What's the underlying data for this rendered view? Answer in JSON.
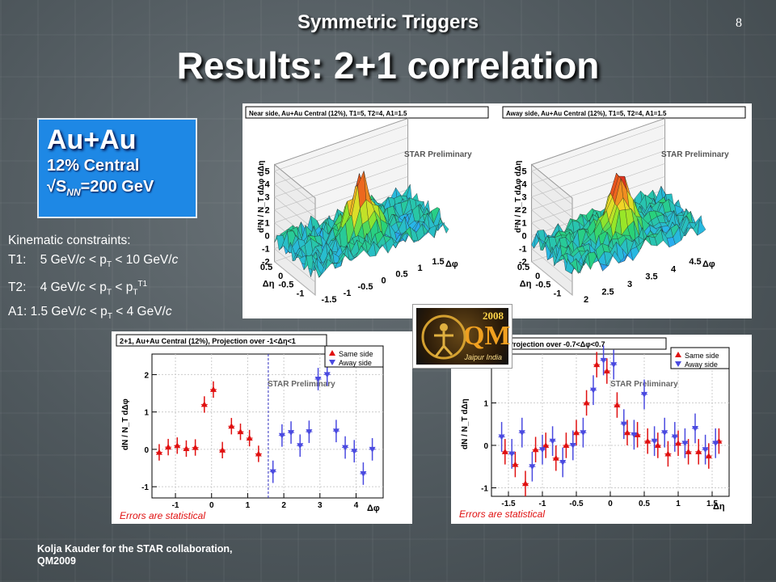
{
  "slide": {
    "subtitle": "Symmetric Triggers",
    "title": "Results: 2+1 correlation",
    "page_number": "8",
    "box": {
      "title": "Au+Au",
      "line1": "12% Central",
      "line2_pre": "√S",
      "line2_sub": "NN",
      "line2_post": "=200 GeV"
    },
    "kinematics": {
      "header": "Kinematic constraints:",
      "t1": {
        "label": "T1:",
        "pre": "5 GeV/",
        "unit_it": "c",
        "mid": " < p",
        "sub": "T",
        "post": " < 10 GeV/",
        "post_it": "c"
      },
      "t2": {
        "label": "T2:",
        "pre": "4 GeV/",
        "unit_it": "c",
        "mid": " < p",
        "sub": "T",
        "post": " < p",
        "sub2": "T",
        "sup2": "T1"
      },
      "a1": {
        "label": "A1:",
        "pre": "1.5 GeV/",
        "unit_it": "c",
        "mid": " < p",
        "sub": "T",
        "post": " < 4 GeV/",
        "post_it": "c"
      }
    },
    "footer_line1": "Kolja Kauder for the STAR collaboration,",
    "footer_line2": "QM2009",
    "logo": {
      "year": "2008",
      "mark": "QM",
      "city": "Jaipur India"
    },
    "accent_colors": {
      "same_side": "#e01010",
      "away_side": "#4a4ae0",
      "box_blue": "#1e88e5"
    }
  },
  "chart_data": [
    {
      "type": "surface3d",
      "title": "Near side, Au+Au Central (12%), T1=5, T2=4, A1=1.5",
      "watermark": "STAR Preliminary",
      "zlabel": "d²N / N_T dΔφ dΔη",
      "z_ticks": [
        "-2",
        "-1",
        "0",
        "1",
        "2",
        "3",
        "4",
        "5"
      ],
      "eta_ticks": [
        "-1",
        "-0.5",
        "0",
        "0.5"
      ],
      "phi_ticks": [
        "-1.5",
        "-1",
        "-0.5",
        "0",
        "0.5",
        "1",
        "1.5"
      ],
      "eta_label": "Δη",
      "phi_label": "Δφ",
      "peak_value": 4.5
    },
    {
      "type": "surface3d",
      "title": "Away side, Au+Au Central (12%), T1=5, T2=4, A1=1.5",
      "watermark": "STAR Preliminary",
      "zlabel": "d²N / N_T dΔφ dΔη",
      "z_ticks": [
        "-2",
        "-1",
        "0",
        "1",
        "2",
        "3",
        "4",
        "5"
      ],
      "eta_ticks": [
        "-1",
        "-0.5",
        "0",
        "0.5"
      ],
      "phi_ticks": [
        "2",
        "2.5",
        "3",
        "3.5",
        "4",
        "4.5"
      ],
      "eta_label": "Δη",
      "phi_label": "Δφ",
      "peak_value": 4.3
    },
    {
      "type": "scatter",
      "title": "2+1, Au+Au Central (12%), Projection over -1<Δη<1",
      "watermark": "STAR Preliminary",
      "note": "Errors are statistical",
      "xlabel": "Δφ",
      "ylabel": "dN / N_T dΔφ",
      "xlim": [
        -1.65,
        4.75
      ],
      "ylim": [
        -1.3,
        2.55
      ],
      "x_ticks": [
        -1,
        0,
        1,
        2,
        3,
        4
      ],
      "y_ticks": [
        -1,
        0,
        1,
        2
      ],
      "divider_x": 1.57,
      "legend": [
        "Same side",
        "Away side"
      ],
      "series": [
        {
          "name": "Same side",
          "color": "#e01010",
          "marker": "triangle-up",
          "x": [
            -1.45,
            -1.2,
            -0.95,
            -0.7,
            -0.45,
            -0.2,
            0.05,
            0.3,
            0.55,
            0.8,
            1.05,
            1.3
          ],
          "y": [
            -0.08,
            0.06,
            0.1,
            0.02,
            0.05,
            1.2,
            1.6,
            -0.02,
            0.62,
            0.47,
            0.3,
            -0.12
          ],
          "err": [
            0.22,
            0.22,
            0.22,
            0.22,
            0.22,
            0.22,
            0.22,
            0.22,
            0.22,
            0.22,
            0.22,
            0.22
          ]
        },
        {
          "name": "Away side",
          "color": "#4a4ae0",
          "marker": "triangle-down",
          "x": [
            1.7,
            1.95,
            2.2,
            2.45,
            2.7,
            2.95,
            3.2,
            3.45,
            3.7,
            3.95,
            4.2,
            4.45
          ],
          "y": [
            -0.6,
            0.37,
            0.45,
            0.1,
            0.47,
            1.88,
            2.0,
            0.49,
            0.05,
            -0.05,
            -0.65,
            0.0
          ],
          "err": [
            0.3,
            0.3,
            0.3,
            0.3,
            0.3,
            0.3,
            0.3,
            0.3,
            0.3,
            0.3,
            0.3,
            0.3
          ]
        }
      ]
    },
    {
      "type": "scatter",
      "title": "central (12%), Projection over -0.7<Δφ<0.7",
      "watermark": "STAR Preliminary",
      "note": "Errors are statistical",
      "xlabel": "Δη",
      "ylabel": "dN / N_T dΔη",
      "xlim": [
        -1.75,
        1.75
      ],
      "ylim": [
        -1.2,
        2.15
      ],
      "x_ticks": [
        -1.5,
        -1,
        -0.5,
        0,
        0.5,
        1,
        1.5
      ],
      "y_ticks": [
        -1,
        0,
        1
      ],
      "legend": [
        "Same side",
        "Away side"
      ],
      "series": [
        {
          "name": "Same side",
          "color": "#e01010",
          "marker": "triangle-up",
          "x": [
            -1.55,
            -1.4,
            -1.25,
            -1.1,
            -0.95,
            -0.8,
            -0.65,
            -0.5,
            -0.35,
            -0.2,
            -0.05,
            0.1,
            0.25,
            0.4,
            0.55,
            0.7,
            0.85,
            1.0,
            1.15,
            1.3,
            1.45,
            1.6
          ],
          "y": [
            -0.15,
            -0.45,
            -0.9,
            -0.1,
            0.0,
            -0.3,
            0.0,
            0.3,
            1.0,
            1.9,
            1.75,
            0.95,
            0.3,
            0.25,
            0.1,
            0.0,
            -0.2,
            0.05,
            -0.15,
            -0.15,
            -0.25,
            0.1
          ],
          "err": [
            0.3,
            0.3,
            0.3,
            0.3,
            0.3,
            0.3,
            0.3,
            0.3,
            0.3,
            0.3,
            0.3,
            0.3,
            0.3,
            0.3,
            0.3,
            0.3,
            0.3,
            0.3,
            0.3,
            0.3,
            0.3,
            0.3
          ]
        },
        {
          "name": "Away side",
          "color": "#4a4ae0",
          "marker": "triangle-down",
          "x": [
            -1.6,
            -1.45,
            -1.3,
            -1.15,
            -1.0,
            -0.85,
            -0.7,
            -0.55,
            -0.4,
            -0.25,
            -0.1,
            0.05,
            0.2,
            0.35,
            0.5,
            0.65,
            0.8,
            0.95,
            1.1,
            1.25,
            1.4,
            1.55
          ],
          "y": [
            0.2,
            -0.2,
            0.3,
            -0.5,
            -0.1,
            0.1,
            -0.4,
            0.0,
            0.3,
            1.3,
            2.0,
            1.9,
            0.5,
            0.25,
            1.2,
            0.1,
            0.3,
            0.2,
            0.05,
            0.4,
            -0.1,
            0.05
          ],
          "err": [
            0.35,
            0.35,
            0.35,
            0.35,
            0.35,
            0.35,
            0.35,
            0.35,
            0.35,
            0.35,
            0.35,
            0.35,
            0.35,
            0.35,
            0.35,
            0.35,
            0.35,
            0.35,
            0.35,
            0.35,
            0.35,
            0.35
          ]
        }
      ]
    }
  ]
}
